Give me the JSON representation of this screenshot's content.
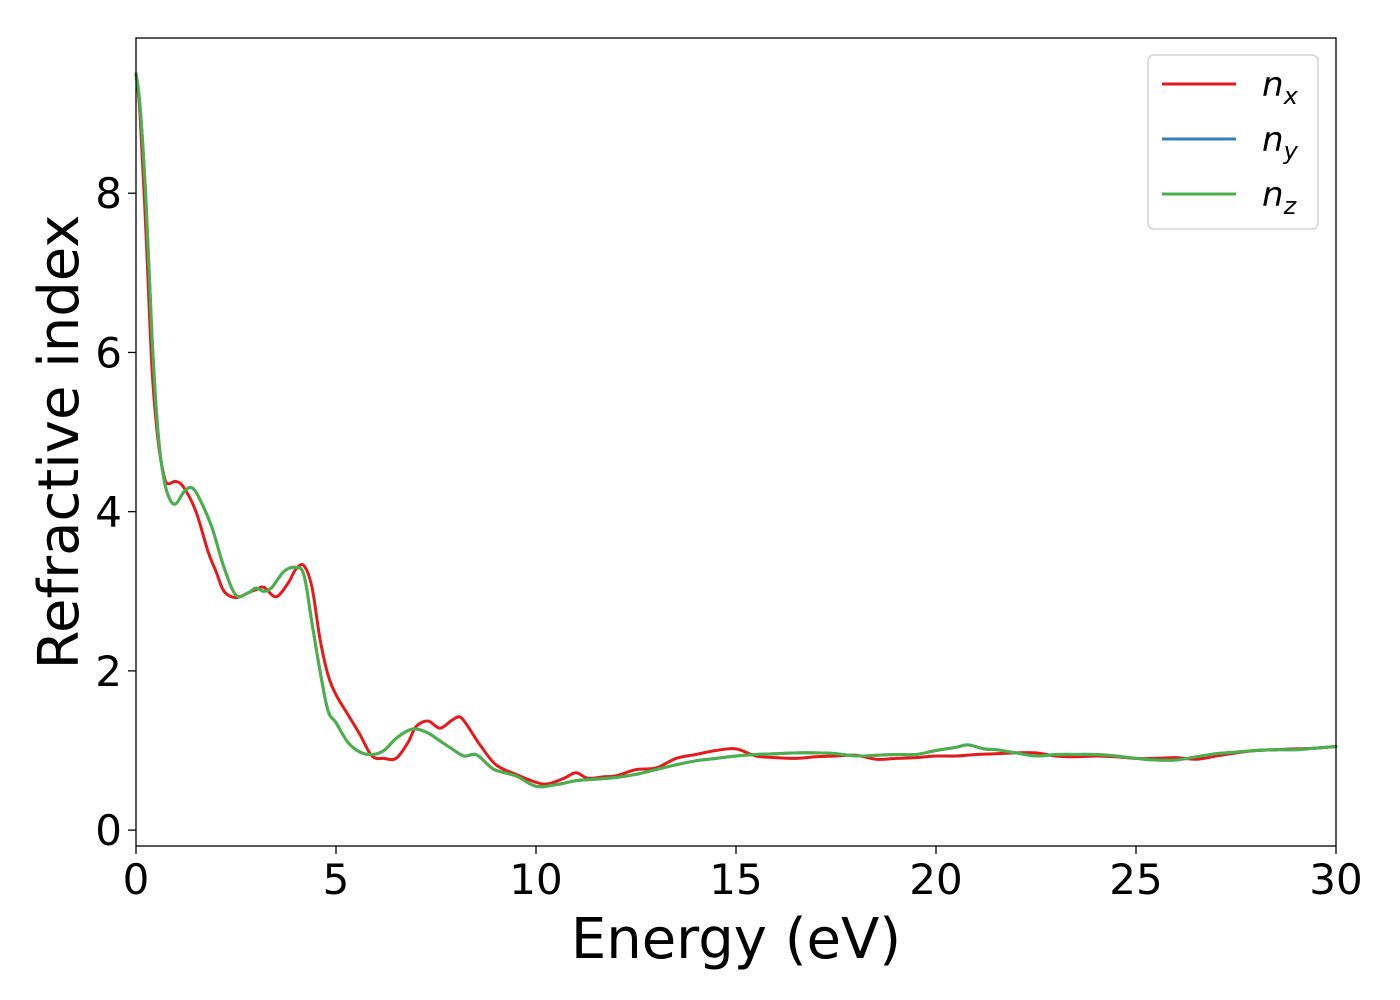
{
  "chart_data": {
    "type": "line",
    "title": "",
    "xlabel": "Energy (eV)",
    "ylabel": "Refractive index",
    "xlim": [
      0,
      30
    ],
    "ylim": [
      -0.2,
      9.95
    ],
    "xticks": [
      0,
      5,
      10,
      15,
      20,
      25,
      30
    ],
    "yticks": [
      0,
      2,
      4,
      6,
      8
    ],
    "grid": false,
    "legend_position": "top-right",
    "series": [
      {
        "name": "n",
        "sub": "x",
        "color": "#e41a1c",
        "x": [
          0,
          0.1,
          0.25,
          0.4,
          0.55,
          0.7,
          0.8,
          1.0,
          1.2,
          1.5,
          1.8,
          2.0,
          2.2,
          2.5,
          2.8,
          3.0,
          3.2,
          3.5,
          3.8,
          4.0,
          4.2,
          4.4,
          4.6,
          4.8,
          5.0,
          5.3,
          5.6,
          5.9,
          6.2,
          6.5,
          6.8,
          7.0,
          7.3,
          7.6,
          7.9,
          8.1,
          8.3,
          8.6,
          9.0,
          9.5,
          10.0,
          10.3,
          10.7,
          11.0,
          11.3,
          11.7,
          12.0,
          12.5,
          13.0,
          13.5,
          14.0,
          14.5,
          15.0,
          15.5,
          16.0,
          16.5,
          17.0,
          17.5,
          18.0,
          18.5,
          19.0,
          19.5,
          20.0,
          20.5,
          21.0,
          21.5,
          22.0,
          22.5,
          23.0,
          23.5,
          24.0,
          24.5,
          25.0,
          25.5,
          26.0,
          26.5,
          27.0,
          27.5,
          28.0,
          28.5,
          29.0,
          29.5,
          30.0
        ],
        "y": [
          9.5,
          9.0,
          7.5,
          5.8,
          4.9,
          4.45,
          4.35,
          4.38,
          4.3,
          4.0,
          3.5,
          3.25,
          3.0,
          2.92,
          2.98,
          3.02,
          3.05,
          2.93,
          3.1,
          3.28,
          3.32,
          3.05,
          2.4,
          1.95,
          1.7,
          1.45,
          1.2,
          0.93,
          0.9,
          0.9,
          1.1,
          1.3,
          1.37,
          1.28,
          1.38,
          1.42,
          1.3,
          1.07,
          0.82,
          0.7,
          0.6,
          0.58,
          0.65,
          0.72,
          0.65,
          0.67,
          0.68,
          0.76,
          0.78,
          0.9,
          0.95,
          1.0,
          1.02,
          0.93,
          0.91,
          0.9,
          0.92,
          0.93,
          0.94,
          0.89,
          0.9,
          0.91,
          0.93,
          0.93,
          0.95,
          0.96,
          0.97,
          0.97,
          0.93,
          0.92,
          0.93,
          0.92,
          0.9,
          0.9,
          0.91,
          0.89,
          0.93,
          0.97,
          1.0,
          1.01,
          1.02,
          1.03,
          1.05
        ]
      },
      {
        "name": "n",
        "sub": "y",
        "color": "#377eb8",
        "x": [
          0,
          0.1,
          0.25,
          0.4,
          0.55,
          0.7,
          0.85,
          1.0,
          1.2,
          1.4,
          1.6,
          1.9,
          2.2,
          2.5,
          2.8,
          3.0,
          3.2,
          3.4,
          3.7,
          4.0,
          4.2,
          4.4,
          4.6,
          4.8,
          5.0,
          5.3,
          5.6,
          5.9,
          6.2,
          6.5,
          6.8,
          7.0,
          7.3,
          7.6,
          7.9,
          8.2,
          8.5,
          8.8,
          9.0,
          9.5,
          10.0,
          10.5,
          11.0,
          11.5,
          12.0,
          12.5,
          13.0,
          13.5,
          14.0,
          14.5,
          15.0,
          15.5,
          16.0,
          16.5,
          17.0,
          17.5,
          18.0,
          18.5,
          19.0,
          19.5,
          20.0,
          20.5,
          20.8,
          21.2,
          21.5,
          22.0,
          22.5,
          23.0,
          23.5,
          24.0,
          24.5,
          25.0,
          25.5,
          26.0,
          26.5,
          27.0,
          27.5,
          28.0,
          28.5,
          29.0,
          29.5,
          30.0
        ],
        "y": [
          9.5,
          9.1,
          7.9,
          6.2,
          5.0,
          4.4,
          4.15,
          4.1,
          4.25,
          4.3,
          4.15,
          3.8,
          3.3,
          2.95,
          2.98,
          3.04,
          3.0,
          3.05,
          3.25,
          3.3,
          3.2,
          2.6,
          2.0,
          1.5,
          1.35,
          1.1,
          0.98,
          0.95,
          1.0,
          1.15,
          1.25,
          1.27,
          1.22,
          1.12,
          1.02,
          0.93,
          0.95,
          0.82,
          0.75,
          0.68,
          0.55,
          0.57,
          0.62,
          0.64,
          0.66,
          0.7,
          0.76,
          0.82,
          0.87,
          0.9,
          0.93,
          0.95,
          0.96,
          0.97,
          0.97,
          0.96,
          0.93,
          0.94,
          0.95,
          0.95,
          1.0,
          1.04,
          1.07,
          1.02,
          1.01,
          0.97,
          0.93,
          0.95,
          0.95,
          0.95,
          0.93,
          0.9,
          0.88,
          0.88,
          0.92,
          0.96,
          0.98,
          1.0,
          1.01,
          1.01,
          1.03,
          1.05
        ]
      },
      {
        "name": "n",
        "sub": "z",
        "color": "#4daf4a",
        "x": [
          0,
          0.1,
          0.25,
          0.4,
          0.55,
          0.7,
          0.85,
          1.0,
          1.2,
          1.4,
          1.6,
          1.9,
          2.2,
          2.5,
          2.8,
          3.0,
          3.2,
          3.4,
          3.7,
          4.0,
          4.2,
          4.4,
          4.6,
          4.8,
          5.0,
          5.3,
          5.6,
          5.9,
          6.2,
          6.5,
          6.8,
          7.0,
          7.3,
          7.6,
          7.9,
          8.2,
          8.5,
          8.8,
          9.0,
          9.5,
          10.0,
          10.5,
          11.0,
          11.5,
          12.0,
          12.5,
          13.0,
          13.5,
          14.0,
          14.5,
          15.0,
          15.5,
          16.0,
          16.5,
          17.0,
          17.5,
          18.0,
          18.5,
          19.0,
          19.5,
          20.0,
          20.5,
          20.8,
          21.2,
          21.5,
          22.0,
          22.5,
          23.0,
          23.5,
          24.0,
          24.5,
          25.0,
          25.5,
          26.0,
          26.5,
          27.0,
          27.5,
          28.0,
          28.5,
          29.0,
          29.5,
          30.0
        ],
        "y": [
          9.5,
          9.1,
          7.9,
          6.2,
          5.0,
          4.4,
          4.15,
          4.1,
          4.25,
          4.3,
          4.15,
          3.8,
          3.3,
          2.95,
          2.98,
          3.04,
          3.0,
          3.05,
          3.25,
          3.3,
          3.2,
          2.6,
          2.0,
          1.5,
          1.35,
          1.1,
          0.98,
          0.95,
          1.0,
          1.15,
          1.25,
          1.27,
          1.22,
          1.12,
          1.02,
          0.93,
          0.95,
          0.82,
          0.75,
          0.68,
          0.55,
          0.57,
          0.62,
          0.64,
          0.66,
          0.7,
          0.76,
          0.82,
          0.87,
          0.9,
          0.93,
          0.95,
          0.96,
          0.97,
          0.97,
          0.96,
          0.93,
          0.94,
          0.95,
          0.95,
          1.0,
          1.04,
          1.07,
          1.02,
          1.01,
          0.97,
          0.93,
          0.95,
          0.95,
          0.95,
          0.93,
          0.9,
          0.88,
          0.88,
          0.92,
          0.96,
          0.98,
          1.0,
          1.01,
          1.01,
          1.03,
          1.05
        ]
      }
    ]
  }
}
